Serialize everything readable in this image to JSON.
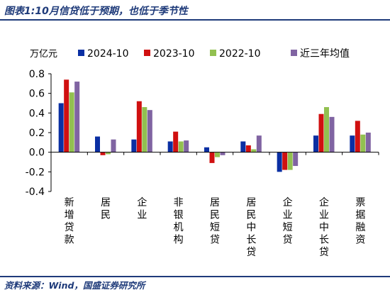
{
  "figure": {
    "title": "图表1:10月信贷低于预期，也低于季节性",
    "source": "资料来源：Wind，国盛证券研究所"
  },
  "chart_data": {
    "type": "bar",
    "unit_label": "万亿元",
    "categories": [
      "新增贷款",
      "居民",
      "企业",
      "非银机构",
      "居民短贷",
      "居民中长贷",
      "企业短贷",
      "企业中长贷",
      "票据融资"
    ],
    "series": [
      {
        "name": "2024-10",
        "color": "#0a2fa3",
        "values": [
          0.5,
          0.16,
          0.13,
          0.11,
          0.05,
          0.11,
          -0.2,
          0.17,
          0.17
        ]
      },
      {
        "name": "2023-10",
        "color": "#d01010",
        "values": [
          0.74,
          -0.03,
          0.52,
          0.21,
          -0.11,
          0.07,
          -0.18,
          0.39,
          0.32
        ]
      },
      {
        "name": "2022-10",
        "color": "#92c050",
        "values": [
          0.61,
          -0.02,
          0.46,
          0.11,
          -0.05,
          0.03,
          -0.18,
          0.46,
          0.18
        ]
      },
      {
        "name": "近三年均值",
        "color": "#8064a2",
        "values": [
          0.72,
          0.13,
          0.43,
          0.12,
          -0.03,
          0.17,
          -0.14,
          0.36,
          0.2
        ]
      }
    ],
    "ylim": [
      -0.4,
      0.8
    ],
    "yticks": [
      "-0.4",
      "-0.2",
      "0.0",
      "0.2",
      "0.4",
      "0.6",
      "0.8"
    ],
    "legend_position": "top",
    "grid": false
  }
}
